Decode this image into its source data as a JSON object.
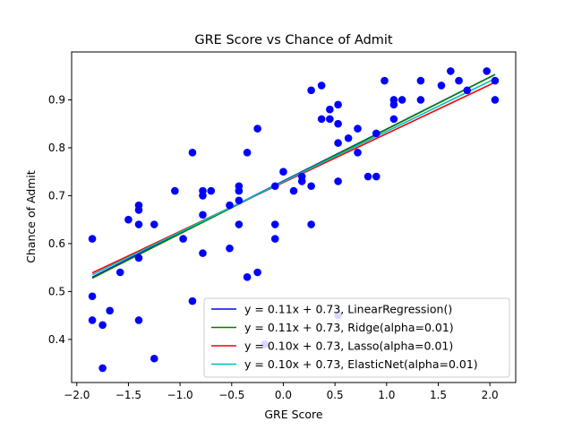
{
  "chart_data": {
    "type": "scatter",
    "title": "GRE Score vs Chance of Admit",
    "xlabel": "GRE Score",
    "ylabel": "Chance of Admit",
    "xlim": [
      -2.05,
      2.25
    ],
    "ylim": [
      0.31,
      1.0
    ],
    "xticks": [
      -2.0,
      -1.5,
      -1.0,
      -0.5,
      0.0,
      0.5,
      1.0,
      1.5,
      2.0
    ],
    "xtick_labels": [
      "−2.0",
      "−1.5",
      "−1.0",
      "−0.5",
      "0.0",
      "0.5",
      "1.0",
      "1.5",
      "2.0"
    ],
    "yticks": [
      0.4,
      0.5,
      0.6,
      0.7,
      0.8,
      0.9
    ],
    "ytick_labels": [
      "0.4",
      "0.5",
      "0.6",
      "0.7",
      "0.8",
      "0.9"
    ],
    "grid": false,
    "legend_position": "bottom-right",
    "points_color": "#0000ff",
    "points": [
      [
        -1.85,
        0.61
      ],
      [
        -1.85,
        0.49
      ],
      [
        -1.85,
        0.44
      ],
      [
        -1.75,
        0.43
      ],
      [
        -1.75,
        0.34
      ],
      [
        -1.68,
        0.46
      ],
      [
        -1.58,
        0.54
      ],
      [
        -1.5,
        0.65
      ],
      [
        -1.4,
        0.68
      ],
      [
        -1.4,
        0.67
      ],
      [
        -1.4,
        0.64
      ],
      [
        -1.4,
        0.57
      ],
      [
        -1.4,
        0.44
      ],
      [
        -1.25,
        0.64
      ],
      [
        -1.25,
        0.36
      ],
      [
        -1.05,
        0.71
      ],
      [
        -0.97,
        0.61
      ],
      [
        -0.88,
        0.79
      ],
      [
        -0.88,
        0.48
      ],
      [
        -0.78,
        0.71
      ],
      [
        -0.78,
        0.7
      ],
      [
        -0.78,
        0.66
      ],
      [
        -0.78,
        0.58
      ],
      [
        -0.7,
        0.71
      ],
      [
        -0.52,
        0.68
      ],
      [
        -0.52,
        0.59
      ],
      [
        -0.43,
        0.72
      ],
      [
        -0.43,
        0.71
      ],
      [
        -0.43,
        0.69
      ],
      [
        -0.43,
        0.64
      ],
      [
        -0.35,
        0.79
      ],
      [
        -0.35,
        0.53
      ],
      [
        -0.25,
        0.84
      ],
      [
        -0.25,
        0.54
      ],
      [
        -0.18,
        0.39
      ],
      [
        -0.08,
        0.72
      ],
      [
        -0.08,
        0.64
      ],
      [
        -0.08,
        0.61
      ],
      [
        0.0,
        0.75
      ],
      [
        0.1,
        0.71
      ],
      [
        0.18,
        0.74
      ],
      [
        0.18,
        0.73
      ],
      [
        0.27,
        0.92
      ],
      [
        0.27,
        0.72
      ],
      [
        0.27,
        0.64
      ],
      [
        0.37,
        0.93
      ],
      [
        0.37,
        0.86
      ],
      [
        0.45,
        0.88
      ],
      [
        0.45,
        0.86
      ],
      [
        0.53,
        0.89
      ],
      [
        0.53,
        0.85
      ],
      [
        0.53,
        0.81
      ],
      [
        0.53,
        0.73
      ],
      [
        0.53,
        0.45
      ],
      [
        0.63,
        0.82
      ],
      [
        0.72,
        0.84
      ],
      [
        0.72,
        0.79
      ],
      [
        0.82,
        0.74
      ],
      [
        0.9,
        0.83
      ],
      [
        0.9,
        0.74
      ],
      [
        0.98,
        0.94
      ],
      [
        1.07,
        0.9
      ],
      [
        1.07,
        0.89
      ],
      [
        1.07,
        0.86
      ],
      [
        1.15,
        0.9
      ],
      [
        1.33,
        0.94
      ],
      [
        1.33,
        0.9
      ],
      [
        1.53,
        0.93
      ],
      [
        1.62,
        0.96
      ],
      [
        1.7,
        0.94
      ],
      [
        1.78,
        0.92
      ],
      [
        1.97,
        0.96
      ],
      [
        2.05,
        0.94
      ],
      [
        2.05,
        0.9
      ]
    ],
    "series": [
      {
        "name": "y = 0.11x + 0.73, LinearRegression()",
        "color": "#0000ff",
        "slope": 0.1085,
        "intercept": 0.7305
      },
      {
        "name": "y = 0.11x + 0.73, Ridge(alpha=0.01)",
        "color": "#008000",
        "slope": 0.109,
        "intercept": 0.7295
      },
      {
        "name": "y = 0.10x + 0.73, Lasso(alpha=0.01)",
        "color": "#ff0000",
        "slope": 0.102,
        "intercept": 0.7275
      },
      {
        "name": "y = 0.10x + 0.73, ElasticNet(alpha=0.01)",
        "color": "#00bfbf",
        "slope": 0.105,
        "intercept": 0.729
      }
    ],
    "line_x_range": [
      -1.85,
      2.05
    ]
  }
}
